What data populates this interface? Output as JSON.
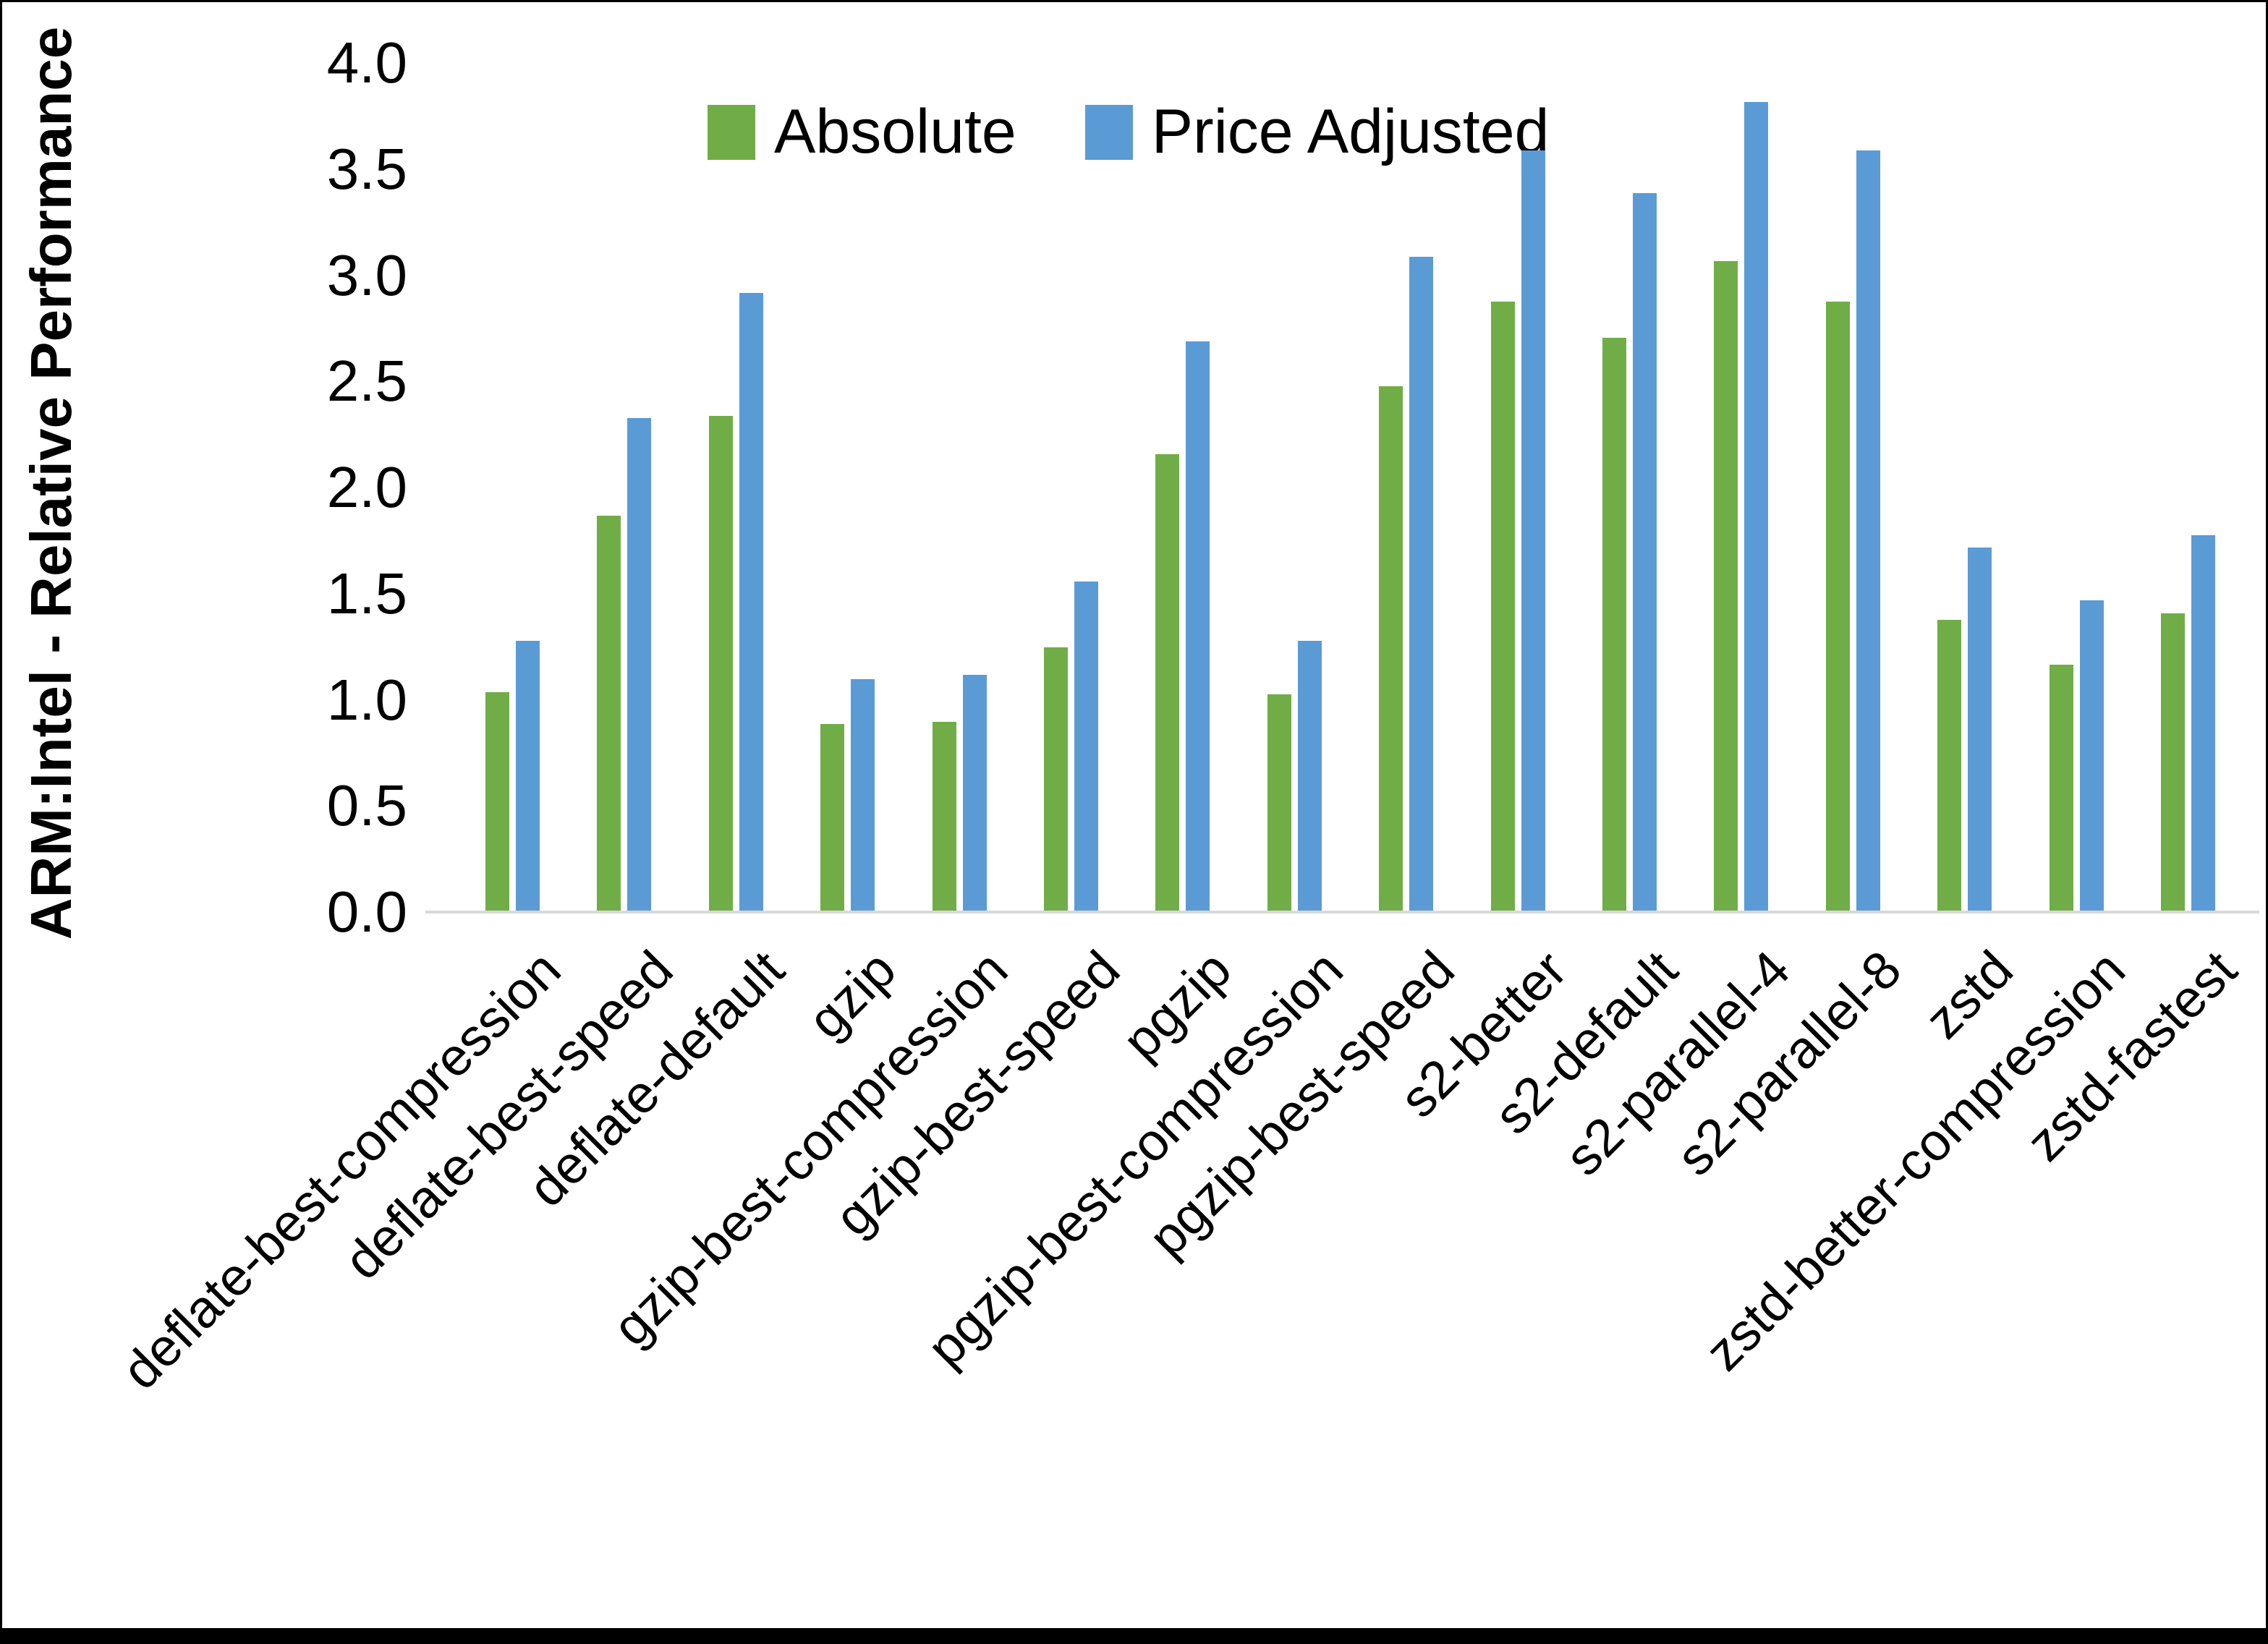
{
  "y_axis": {
    "label": "ARM:Intel - Relative Performance",
    "ticks": [
      "0.0",
      "0.5",
      "1.0",
      "1.5",
      "2.0",
      "2.5",
      "3.0",
      "3.5",
      "4.0"
    ]
  },
  "legend": {
    "items": [
      {
        "label": "Absolute",
        "color": "#70AD47"
      },
      {
        "label": "Price Adjusted",
        "color": "#5B9BD5"
      }
    ]
  },
  "chart_data": {
    "type": "bar",
    "title": "",
    "xlabel": "",
    "ylabel": "ARM:Intel - Relative Performance",
    "ylim": [
      0,
      4.0
    ],
    "ytick_step": 0.5,
    "grid": false,
    "legend_position": "top-center",
    "axis_line_color": "#d9d9d9",
    "categories": [
      "deflate-best-compression",
      "deflate-best-speed",
      "deflate-default",
      "gzip",
      "gzip-best-compression",
      "gzip-best-speed",
      "pgzip",
      "pgzip-best-compression",
      "pgzip-best-speed",
      "s2-better",
      "s2-default",
      "s2-parallel-4",
      "s2-parallel-8",
      "zstd",
      "zstd-better-compression",
      "zstd-fastest"
    ],
    "series": [
      {
        "name": "Absolute",
        "color": "#70AD47",
        "values": [
          1.03,
          1.86,
          2.33,
          0.88,
          0.89,
          1.24,
          2.15,
          1.02,
          2.47,
          2.87,
          2.7,
          3.06,
          2.87,
          1.37,
          1.16,
          1.4
        ]
      },
      {
        "name": "Price Adjusted",
        "color": "#5B9BD5",
        "values": [
          1.27,
          2.32,
          2.91,
          1.09,
          1.11,
          1.55,
          2.68,
          1.27,
          3.08,
          3.58,
          3.38,
          3.81,
          3.58,
          1.71,
          1.46,
          1.77
        ]
      }
    ]
  }
}
